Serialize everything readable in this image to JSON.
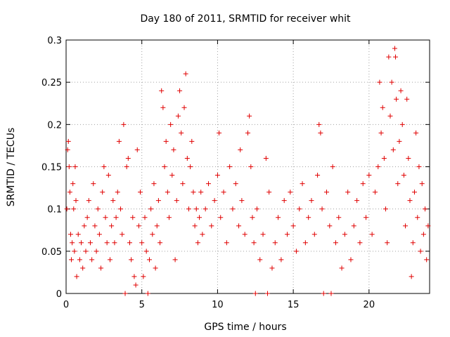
{
  "chart_data": {
    "type": "scatter",
    "title": "Day 180 of 2011, SRMTID for receiver whit",
    "xlabel": "GPS time / hours",
    "ylabel": "SRMTID / TECUs",
    "xlim": [
      0,
      24
    ],
    "ylim": [
      0,
      0.3
    ],
    "xticks": [
      0,
      5,
      10,
      15,
      20
    ],
    "xtick_labels": [
      "0",
      "5",
      "10",
      "15",
      "20"
    ],
    "yticks": [
      0,
      0.05,
      0.1,
      0.15,
      0.2,
      0.25,
      0.3
    ],
    "ytick_labels": [
      "0",
      "0.05",
      "0.1",
      "0.15",
      "0.2",
      "0.25",
      "0.3"
    ],
    "grid": true,
    "marker": "+",
    "series_color": "#e00000",
    "series": [
      {
        "name": "SRMTID",
        "points": [
          [
            0.05,
            0.1
          ],
          [
            0.1,
            0.17
          ],
          [
            0.15,
            0.18
          ],
          [
            0.2,
            0.15
          ],
          [
            0.25,
            0.12
          ],
          [
            0.3,
            0.07
          ],
          [
            0.35,
            0.04
          ],
          [
            0.4,
            0.06
          ],
          [
            0.45,
            0.13
          ],
          [
            0.5,
            0.1
          ],
          [
            0.55,
            0.05
          ],
          [
            0.6,
            0.15
          ],
          [
            0.65,
            0.11
          ],
          [
            0.7,
            0.02
          ],
          [
            0.8,
            0.07
          ],
          [
            0.9,
            0.04
          ],
          [
            1.0,
            0.06
          ],
          [
            1.1,
            0.03
          ],
          [
            1.2,
            0.08
          ],
          [
            1.3,
            0.05
          ],
          [
            1.4,
            0.09
          ],
          [
            1.5,
            0.11
          ],
          [
            1.6,
            0.06
          ],
          [
            1.7,
            0.04
          ],
          [
            1.8,
            0.13
          ],
          [
            1.9,
            0.08
          ],
          [
            2.0,
            0.05
          ],
          [
            2.1,
            0.1
          ],
          [
            2.2,
            0.07
          ],
          [
            2.3,
            0.03
          ],
          [
            2.4,
            0.12
          ],
          [
            2.5,
            0.15
          ],
          [
            2.6,
            0.09
          ],
          [
            2.7,
            0.06
          ],
          [
            2.8,
            0.14
          ],
          [
            2.9,
            0.04
          ],
          [
            3.0,
            0.08
          ],
          [
            3.1,
            0.11
          ],
          [
            3.2,
            0.06
          ],
          [
            3.3,
            0.09
          ],
          [
            3.4,
            0.12
          ],
          [
            3.5,
            0.18
          ],
          [
            3.6,
            0.1
          ],
          [
            3.7,
            0.07
          ],
          [
            3.8,
            0.2
          ],
          [
            3.9,
            0.0
          ],
          [
            4.0,
            0.15
          ],
          [
            4.1,
            0.16
          ],
          [
            4.2,
            0.06
          ],
          [
            4.3,
            0.04
          ],
          [
            4.4,
            0.09
          ],
          [
            4.5,
            0.02
          ],
          [
            4.6,
            0.01
          ],
          [
            4.7,
            0.17
          ],
          [
            4.8,
            0.08
          ],
          [
            4.9,
            0.12
          ],
          [
            5.0,
            0.06
          ],
          [
            5.1,
            0.02
          ],
          [
            5.2,
            0.09
          ],
          [
            5.3,
            0.05
          ],
          [
            5.4,
            0.0
          ],
          [
            5.5,
            0.04
          ],
          [
            5.6,
            0.1
          ],
          [
            5.7,
            0.07
          ],
          [
            5.8,
            0.13
          ],
          [
            5.9,
            0.03
          ],
          [
            6.0,
            0.08
          ],
          [
            6.1,
            0.11
          ],
          [
            6.2,
            0.06
          ],
          [
            6.3,
            0.24
          ],
          [
            6.4,
            0.22
          ],
          [
            6.5,
            0.15
          ],
          [
            6.6,
            0.18
          ],
          [
            6.7,
            0.12
          ],
          [
            6.8,
            0.09
          ],
          [
            6.9,
            0.2
          ],
          [
            7.0,
            0.14
          ],
          [
            7.1,
            0.17
          ],
          [
            7.2,
            0.04
          ],
          [
            7.3,
            0.11
          ],
          [
            7.4,
            0.21
          ],
          [
            7.5,
            0.24
          ],
          [
            7.6,
            0.19
          ],
          [
            7.7,
            0.13
          ],
          [
            7.8,
            0.22
          ],
          [
            7.9,
            0.26
          ],
          [
            8.0,
            0.16
          ],
          [
            8.1,
            0.1
          ],
          [
            8.2,
            0.15
          ],
          [
            8.3,
            0.18
          ],
          [
            8.4,
            0.12
          ],
          [
            8.5,
            0.08
          ],
          [
            8.6,
            0.1
          ],
          [
            8.7,
            0.06
          ],
          [
            8.8,
            0.09
          ],
          [
            8.9,
            0.12
          ],
          [
            9.0,
            0.07
          ],
          [
            9.2,
            0.1
          ],
          [
            9.4,
            0.13
          ],
          [
            9.6,
            0.08
          ],
          [
            9.8,
            0.11
          ],
          [
            10.0,
            0.14
          ],
          [
            10.1,
            0.19
          ],
          [
            10.2,
            0.09
          ],
          [
            10.4,
            0.12
          ],
          [
            10.6,
            0.06
          ],
          [
            10.8,
            0.15
          ],
          [
            11.0,
            0.1
          ],
          [
            11.2,
            0.13
          ],
          [
            11.4,
            0.08
          ],
          [
            11.5,
            0.17
          ],
          [
            11.6,
            0.11
          ],
          [
            11.8,
            0.07
          ],
          [
            12.0,
            0.19
          ],
          [
            12.1,
            0.21
          ],
          [
            12.2,
            0.15
          ],
          [
            12.3,
            0.09
          ],
          [
            12.4,
            0.06
          ],
          [
            12.5,
            0.0
          ],
          [
            12.6,
            0.1
          ],
          [
            12.8,
            0.04
          ],
          [
            13.0,
            0.07
          ],
          [
            13.2,
            0.16
          ],
          [
            13.3,
            0.0
          ],
          [
            13.4,
            0.12
          ],
          [
            13.6,
            0.03
          ],
          [
            13.8,
            0.06
          ],
          [
            14.0,
            0.09
          ],
          [
            14.2,
            0.04
          ],
          [
            14.4,
            0.11
          ],
          [
            14.6,
            0.07
          ],
          [
            14.8,
            0.12
          ],
          [
            15.0,
            0.08
          ],
          [
            15.2,
            0.05
          ],
          [
            15.4,
            0.1
          ],
          [
            15.6,
            0.13
          ],
          [
            15.8,
            0.06
          ],
          [
            16.0,
            0.09
          ],
          [
            16.2,
            0.11
          ],
          [
            16.4,
            0.07
          ],
          [
            16.6,
            0.14
          ],
          [
            16.7,
            0.2
          ],
          [
            16.8,
            0.19
          ],
          [
            16.9,
            0.1
          ],
          [
            17.0,
            0.0
          ],
          [
            17.2,
            0.12
          ],
          [
            17.4,
            0.08
          ],
          [
            17.5,
            0.0
          ],
          [
            17.6,
            0.15
          ],
          [
            17.8,
            0.06
          ],
          [
            18.0,
            0.09
          ],
          [
            18.2,
            0.03
          ],
          [
            18.4,
            0.07
          ],
          [
            18.6,
            0.12
          ],
          [
            18.8,
            0.04
          ],
          [
            19.0,
            0.08
          ],
          [
            19.2,
            0.11
          ],
          [
            19.4,
            0.06
          ],
          [
            19.6,
            0.13
          ],
          [
            19.8,
            0.09
          ],
          [
            20.0,
            0.14
          ],
          [
            20.2,
            0.07
          ],
          [
            20.4,
            0.12
          ],
          [
            20.6,
            0.15
          ],
          [
            20.7,
            0.25
          ],
          [
            20.8,
            0.19
          ],
          [
            20.9,
            0.22
          ],
          [
            21.0,
            0.16
          ],
          [
            21.1,
            0.1
          ],
          [
            21.2,
            0.06
          ],
          [
            21.3,
            0.28
          ],
          [
            21.4,
            0.21
          ],
          [
            21.5,
            0.25
          ],
          [
            21.6,
            0.17
          ],
          [
            21.7,
            0.29
          ],
          [
            21.75,
            0.28
          ],
          [
            21.8,
            0.23
          ],
          [
            21.9,
            0.13
          ],
          [
            22.0,
            0.18
          ],
          [
            22.1,
            0.24
          ],
          [
            22.2,
            0.2
          ],
          [
            22.3,
            0.14
          ],
          [
            22.4,
            0.08
          ],
          [
            22.5,
            0.23
          ],
          [
            22.6,
            0.16
          ],
          [
            22.7,
            0.11
          ],
          [
            22.8,
            0.02
          ],
          [
            22.9,
            0.06
          ],
          [
            23.0,
            0.12
          ],
          [
            23.1,
            0.19
          ],
          [
            23.2,
            0.09
          ],
          [
            23.3,
            0.15
          ],
          [
            23.4,
            0.05
          ],
          [
            23.5,
            0.13
          ],
          [
            23.6,
            0.07
          ],
          [
            23.7,
            0.1
          ],
          [
            23.8,
            0.04
          ],
          [
            23.9,
            0.08
          ]
        ]
      }
    ]
  }
}
